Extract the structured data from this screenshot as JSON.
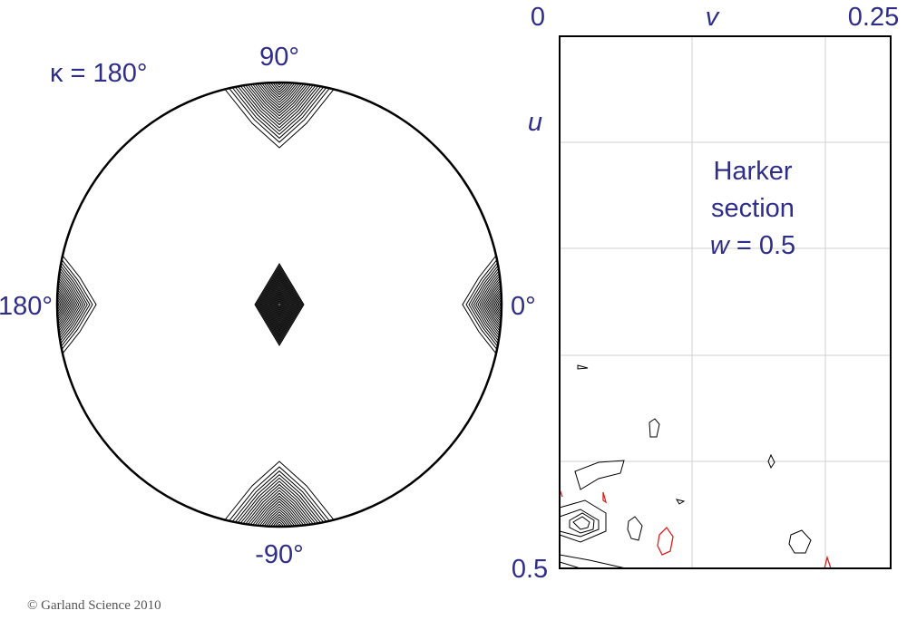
{
  "stereogram": {
    "kappa_label": "κ = 180°",
    "top_label": "90°",
    "left_label": "180°",
    "right_label": "0°",
    "bottom_label": "-90°"
  },
  "harker": {
    "v_min": "0",
    "v_axis": "v",
    "v_max": "0.25",
    "u_axis": "u",
    "u_max": "0.5",
    "line1": "Harker",
    "line2": "section",
    "w_symbol": "w",
    "w_value": " = 0.5"
  },
  "footer": {
    "copyright": "© Garland Science 2010"
  }
}
